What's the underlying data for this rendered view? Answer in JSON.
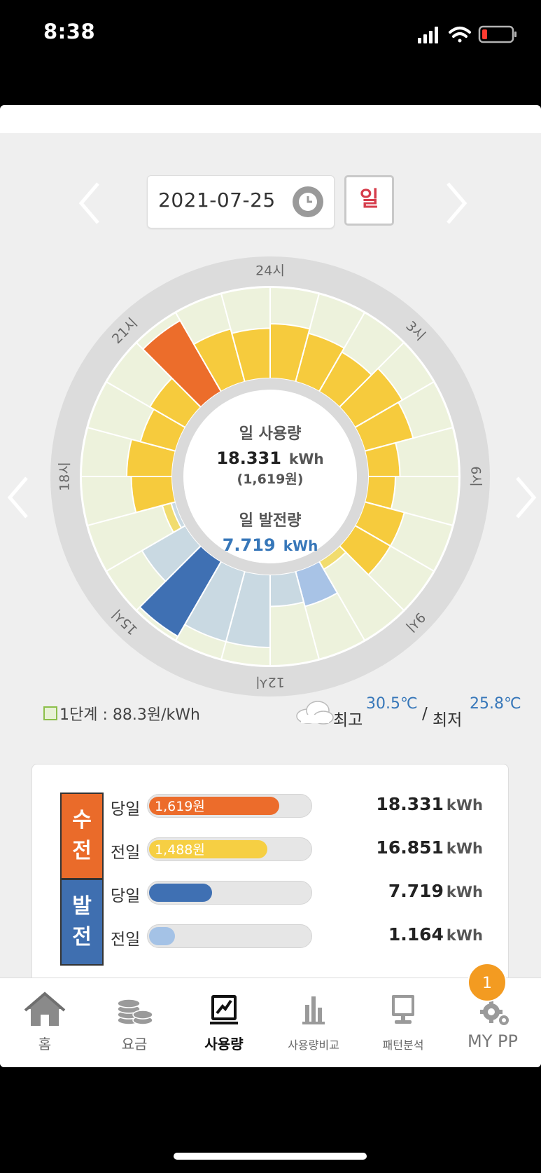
{
  "status_bar": {
    "time": "8:38"
  },
  "header": {
    "date": "2021-07-25",
    "period": "일"
  },
  "dial": {
    "center": {
      "usage_label": "일 사용량",
      "usage_value": "18.331",
      "usage_unit": "kWh",
      "usage_cost": "(1,619원)",
      "gen_label": "일 발전량",
      "gen_value": "7.719",
      "gen_unit": "kWh"
    },
    "hour_labels": [
      "24시",
      "3시",
      "6시",
      "9시",
      "12시",
      "15시",
      "18시",
      "21시"
    ]
  },
  "chart_data": {
    "type": "radial-bar",
    "hours": [
      1,
      2,
      3,
      4,
      5,
      6,
      7,
      8,
      9,
      10,
      11,
      12,
      13,
      14,
      15,
      16,
      17,
      18,
      19,
      20,
      21,
      22,
      23,
      24
    ],
    "usage_level": [
      0.55,
      0.5,
      0.6,
      0.55,
      0.35,
      0.3,
      0.45,
      0.45,
      0.1,
      0.15,
      0.05,
      0.05,
      0.05,
      0.05,
      0.05,
      0.15,
      0.45,
      0.5,
      0.4,
      0.45,
      0.9,
      0.6,
      0.55,
      0.6
    ],
    "usage_highlight_hour": 21,
    "generation_level": [
      0,
      0,
      0,
      0,
      0,
      0,
      0,
      0,
      0,
      0.4,
      0.35,
      0.8,
      0.8,
      0.95,
      0.55,
      0.05,
      0,
      0,
      0,
      0,
      0,
      0,
      0,
      0
    ],
    "generation_highlight_hour": 14
  },
  "legend": {
    "tier": "1단계 : 88.3원/kWh"
  },
  "weather": {
    "high_label": "최고",
    "high_value": "30.5℃",
    "sep": "/",
    "low_label": "최저",
    "low_value": "25.8℃"
  },
  "summary": {
    "receive_label": [
      "수",
      "전"
    ],
    "generate_label": [
      "발",
      "전"
    ],
    "rows": [
      {
        "label": "당일",
        "bar_text": "1,619원",
        "fill": 0.8,
        "value": "18.331",
        "unit": "kWh",
        "color": "#ec6c2b"
      },
      {
        "label": "전일",
        "bar_text": "1,488원",
        "fill": 0.73,
        "value": "16.851",
        "unit": "kWh",
        "color": "#f6cf43"
      },
      {
        "label": "당일",
        "bar_text": "",
        "fill": 0.39,
        "value": "7.719",
        "unit": "kWh",
        "color": "#3f70b3"
      },
      {
        "label": "전일",
        "bar_text": "",
        "fill": 0.16,
        "value": "1.164",
        "unit": "kWh",
        "color": "#a4c2e6"
      }
    ]
  },
  "tabbar": {
    "items": [
      {
        "label": "홈",
        "icon": "home-icon"
      },
      {
        "label": "요금",
        "icon": "coins-icon"
      },
      {
        "label": "사용량",
        "icon": "usage-icon"
      },
      {
        "label": "사용량비교",
        "icon": "compare-icon"
      },
      {
        "label": "패턴분석",
        "icon": "pattern-icon"
      },
      {
        "label": "MY PP",
        "icon": "gear-icon"
      }
    ],
    "badge": "1"
  }
}
